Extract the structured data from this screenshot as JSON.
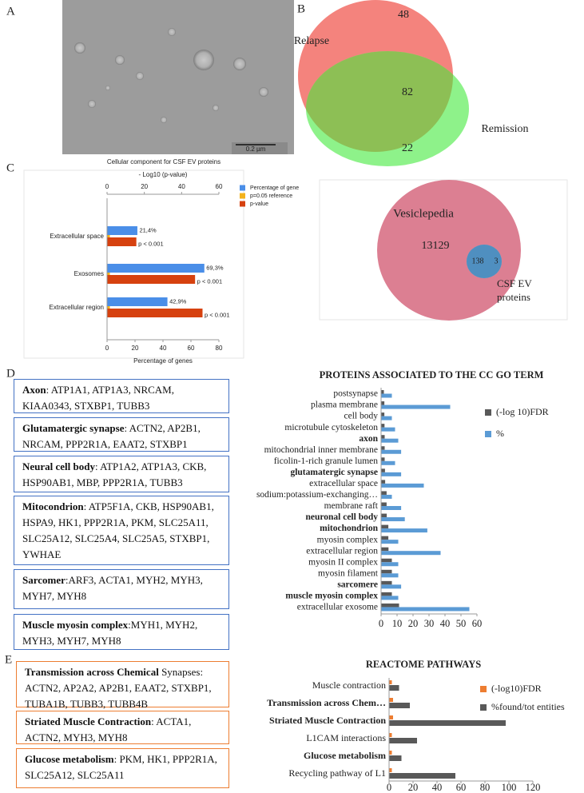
{
  "panels": {
    "a": "A",
    "b": "B",
    "c": "C",
    "d": "D",
    "e": "E"
  },
  "micrograph": {
    "scale_bar": "0.2 µm"
  },
  "chart_data": [
    {
      "type": "venn",
      "sets": [
        {
          "name": "Relapse",
          "color": "#f4837d",
          "only": 48
        },
        {
          "name": "Remission",
          "color": "#8ef28a",
          "only": 22
        }
      ],
      "overlap": 82,
      "overlap_color": "#8dbf55"
    },
    {
      "type": "hbar",
      "title": "Cellular component for CSF EV proteins",
      "categories": [
        "Extracellular space",
        "Exosomes",
        "Extracellular region"
      ],
      "series": [
        {
          "name": "Percentage of gene",
          "color": "#4a8ee8",
          "values": [
            21.4,
            69.3,
            42.9
          ],
          "value_labels": [
            "21,4%",
            "69,3%",
            "42,9%"
          ]
        },
        {
          "name": "p=0.05 reference",
          "color": "#f3b21c",
          "values": [
            1.3,
            1.3,
            1.3
          ],
          "axis": "x2"
        },
        {
          "name": "p-value",
          "color": "#d6410f",
          "values": [
            15.5,
            47,
            51
          ],
          "axis": "x2",
          "value_labels": [
            "p < 0.001",
            "p < 0.001",
            "p < 0.001"
          ]
        }
      ],
      "xlabel": "Percentage of genes",
      "xlim": [
        0,
        80
      ],
      "xticks": [
        0,
        20,
        40,
        60,
        80
      ],
      "x2label": "- Log10 (p-value)",
      "x2lim": [
        0,
        60
      ],
      "x2ticks": [
        0,
        20,
        40,
        60
      ]
    },
    {
      "type": "venn",
      "sets": [
        {
          "name": "Vesiclepedia",
          "color": "#dc7f92",
          "only": 13129
        },
        {
          "name": "CSF EV proteins",
          "color": "#5ec8f0",
          "only": 3
        }
      ],
      "overlap": 138,
      "overlap_color": "#4f8fc0"
    },
    {
      "type": "hbar",
      "title": "PROTEINS ASSOCIATED TO THE CC GO TERM",
      "categories": [
        "postsynapse",
        "plasma membrane",
        "cell body",
        "microtubule cytoskeleton",
        "axon",
        "mitochondrial inner membrane",
        "ficolin-1-rich granule lumen",
        "glutamatergic synapse",
        "extracellular space",
        "sodium:potassium-exchanging…",
        "membrane raft",
        "neuronal cell body",
        "mitochondrion",
        "myosin complex",
        "extracellular region",
        "myosin II complex",
        "myosin filament",
        "sarcomere",
        "muscle myosin complex",
        "extracellular exosome"
      ],
      "bold_indices": [
        4,
        7,
        11,
        12,
        17,
        18
      ],
      "series": [
        {
          "name": "(-log 10)FDR",
          "color": "#595959",
          "values": [
            1.5,
            1.8,
            1.8,
            1.9,
            2,
            2,
            2,
            2.2,
            2.3,
            3.2,
            3.2,
            3.3,
            4.3,
            4.3,
            4.4,
            6.5,
            6.5,
            6.5,
            6.5,
            11
          ]
        },
        {
          "name": "%",
          "color": "#5b9bd5",
          "values": [
            6.5,
            43,
            6.5,
            8.5,
            10.5,
            12.3,
            8.5,
            12.3,
            26.5,
            6.5,
            12.3,
            14.6,
            28.7,
            10.5,
            37,
            10.5,
            10.5,
            12.3,
            10.5,
            55
          ]
        }
      ],
      "xlim": [
        0,
        60
      ],
      "xticks": [
        0,
        10,
        20,
        30,
        40,
        50,
        60
      ]
    },
    {
      "type": "hbar",
      "title": "REACTOME PATHWAYS",
      "categories": [
        "Muscle contraction",
        "Transmission across Chem…",
        "Striated Muscle Contraction",
        "L1CAM interactions",
        "Glucose metabolism",
        "Recycling pathway of L1"
      ],
      "bold_indices": [
        1,
        2,
        4
      ],
      "series": [
        {
          "name": "(-log10)FDR",
          "color": "#ed7d31",
          "values": [
            2,
            3,
            3,
            2,
            2,
            2
          ]
        },
        {
          "name": "%found/tot entities",
          "color": "#595959",
          "values": [
            8,
            17,
            97,
            23,
            10,
            55
          ]
        }
      ],
      "xlim": [
        0,
        120
      ],
      "xticks": [
        0,
        20,
        40,
        60,
        80,
        100,
        120
      ]
    }
  ],
  "go_terms": [
    {
      "term": "Axon",
      "genes": ": ATP1A1, ATP1A3, NRCAM, KIAA0343, STXBP1, TUBB3"
    },
    {
      "term": "Glutamatergic synapse",
      "genes": ": ACTN2, AP2B1, NRCAM, PPP2R1A, EAAT2, STXBP1"
    },
    {
      "term": "Neural cell body",
      "genes": ": ATP1A2, ATP1A3, CKB, HSP90AB1, MBP, PPP2R1A, TUBB3"
    },
    {
      "term": "Mitocondrion",
      "genes": ": ATP5F1A, CKB, HSP90AB1, HSPA9, HK1, PPP2R1A, PKM, SLC25A11, SLC25A12, SLC25A4, SLC25A5, STXBP1, YWHAE"
    },
    {
      "term": "Sarcomer",
      "genes": ":ARF3, ACTA1, MYH2, MYH3, MYH7, MYH8"
    },
    {
      "term": "Muscle myosin complex",
      "genes": ":MYH1, MYH2, MYH3, MYH7, MYH8"
    }
  ],
  "reactome_terms": [
    {
      "term": "Transmission across Chemical",
      "genes": " Synapses: ACTN2, AP2A2, AP2B1, EAAT2, STXBP1, TUBA1B, TUBB3, TUBB4B"
    },
    {
      "term": "Striated Muscle Contraction",
      "genes": ": ACTA1, ACTN2, MYH3, MYH8"
    },
    {
      "term": "Glucose metabolism",
      "genes": ": PKM, HK1, PPP2R1A, SLC25A12, SLC25A11"
    }
  ]
}
